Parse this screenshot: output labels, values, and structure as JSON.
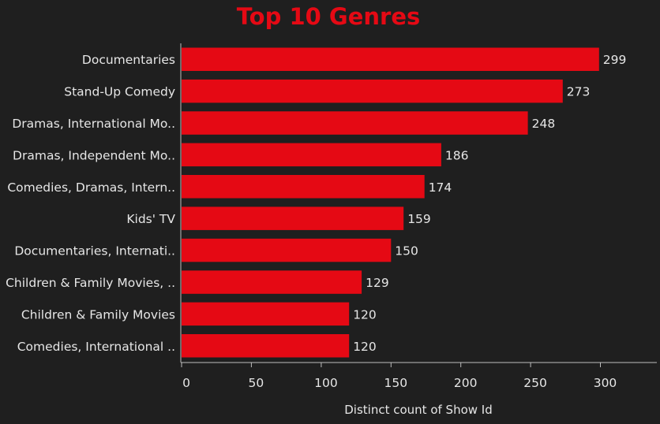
{
  "chart_data": {
    "type": "bar",
    "orientation": "horizontal",
    "title": "Top 10 Genres",
    "xlabel": "Distinct count of Show Id",
    "ylabel": "",
    "categories": [
      "Documentaries",
      "Stand-Up Comedy",
      "Dramas, International Mo..",
      "Dramas, Independent Mo..",
      "Comedies, Dramas, Intern..",
      "Kids' TV",
      "Documentaries, Internati..",
      "Children & Family Movies, ..",
      "Children & Family Movies",
      "Comedies, International .."
    ],
    "values": [
      299,
      273,
      248,
      186,
      174,
      159,
      150,
      129,
      120,
      120
    ],
    "xlim": [
      0,
      340
    ],
    "xticks": [
      0,
      50,
      100,
      150,
      200,
      250,
      300
    ],
    "grid": false,
    "legend": "none"
  },
  "colors": {
    "background": "#1f1f1f",
    "bar": "#e50914",
    "title": "#e50914",
    "text": "#e6e6e6",
    "axis": "#bdbdbd"
  }
}
